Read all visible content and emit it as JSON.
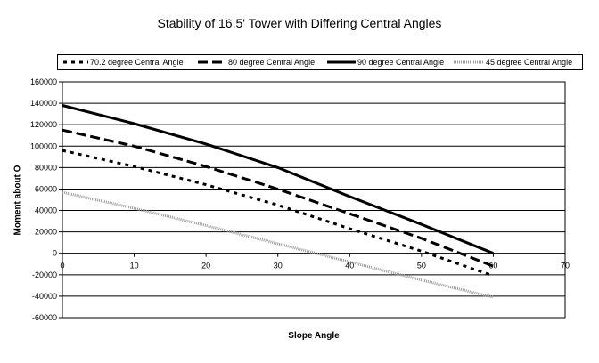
{
  "chart_data": {
    "type": "line",
    "title": "Stability of 16.5' Tower with Differing Central Angles",
    "xlabel": "Slope Angle",
    "ylabel": "Moment about O",
    "xlim": [
      0,
      70
    ],
    "ylim": [
      -60000,
      160000
    ],
    "x_ticks": [
      "0",
      "10",
      "20",
      "30",
      "40",
      "50",
      "60",
      "70"
    ],
    "y_ticks": [
      "160000",
      "140000",
      "120000",
      "100000",
      "80000",
      "60000",
      "40000",
      "20000",
      "0",
      "-20000",
      "-40000",
      "-60000"
    ],
    "grid": "horizontal",
    "legend_position": "top",
    "series": [
      {
        "name": "70.2 degree Central Angle",
        "style": "dotted",
        "color": "#000000",
        "x": [
          0,
          10,
          20,
          30,
          40,
          50,
          60
        ],
        "y": [
          96000,
          81000,
          64000,
          45000,
          23000,
          2000,
          -21000
        ]
      },
      {
        "name": "80 degree Central Angle",
        "style": "dashed",
        "color": "#000000",
        "x": [
          0,
          10,
          20,
          30,
          40,
          50,
          60
        ],
        "y": [
          115000,
          100000,
          81000,
          60000,
          37000,
          14000,
          -12000
        ]
      },
      {
        "name": "90 degree Central Angle",
        "style": "solid",
        "color": "#000000",
        "x": [
          0,
          10,
          20,
          30,
          40,
          50,
          60
        ],
        "y": [
          138000,
          121000,
          102000,
          80000,
          53000,
          27000,
          0
        ]
      },
      {
        "name": "45 degree Central Angle",
        "style": "gray",
        "color": "#9a9a9a",
        "x": [
          0,
          10,
          20,
          30,
          40,
          50,
          60
        ],
        "y": [
          57000,
          42000,
          26000,
          9000,
          -8000,
          -25000,
          -41000
        ]
      }
    ]
  }
}
